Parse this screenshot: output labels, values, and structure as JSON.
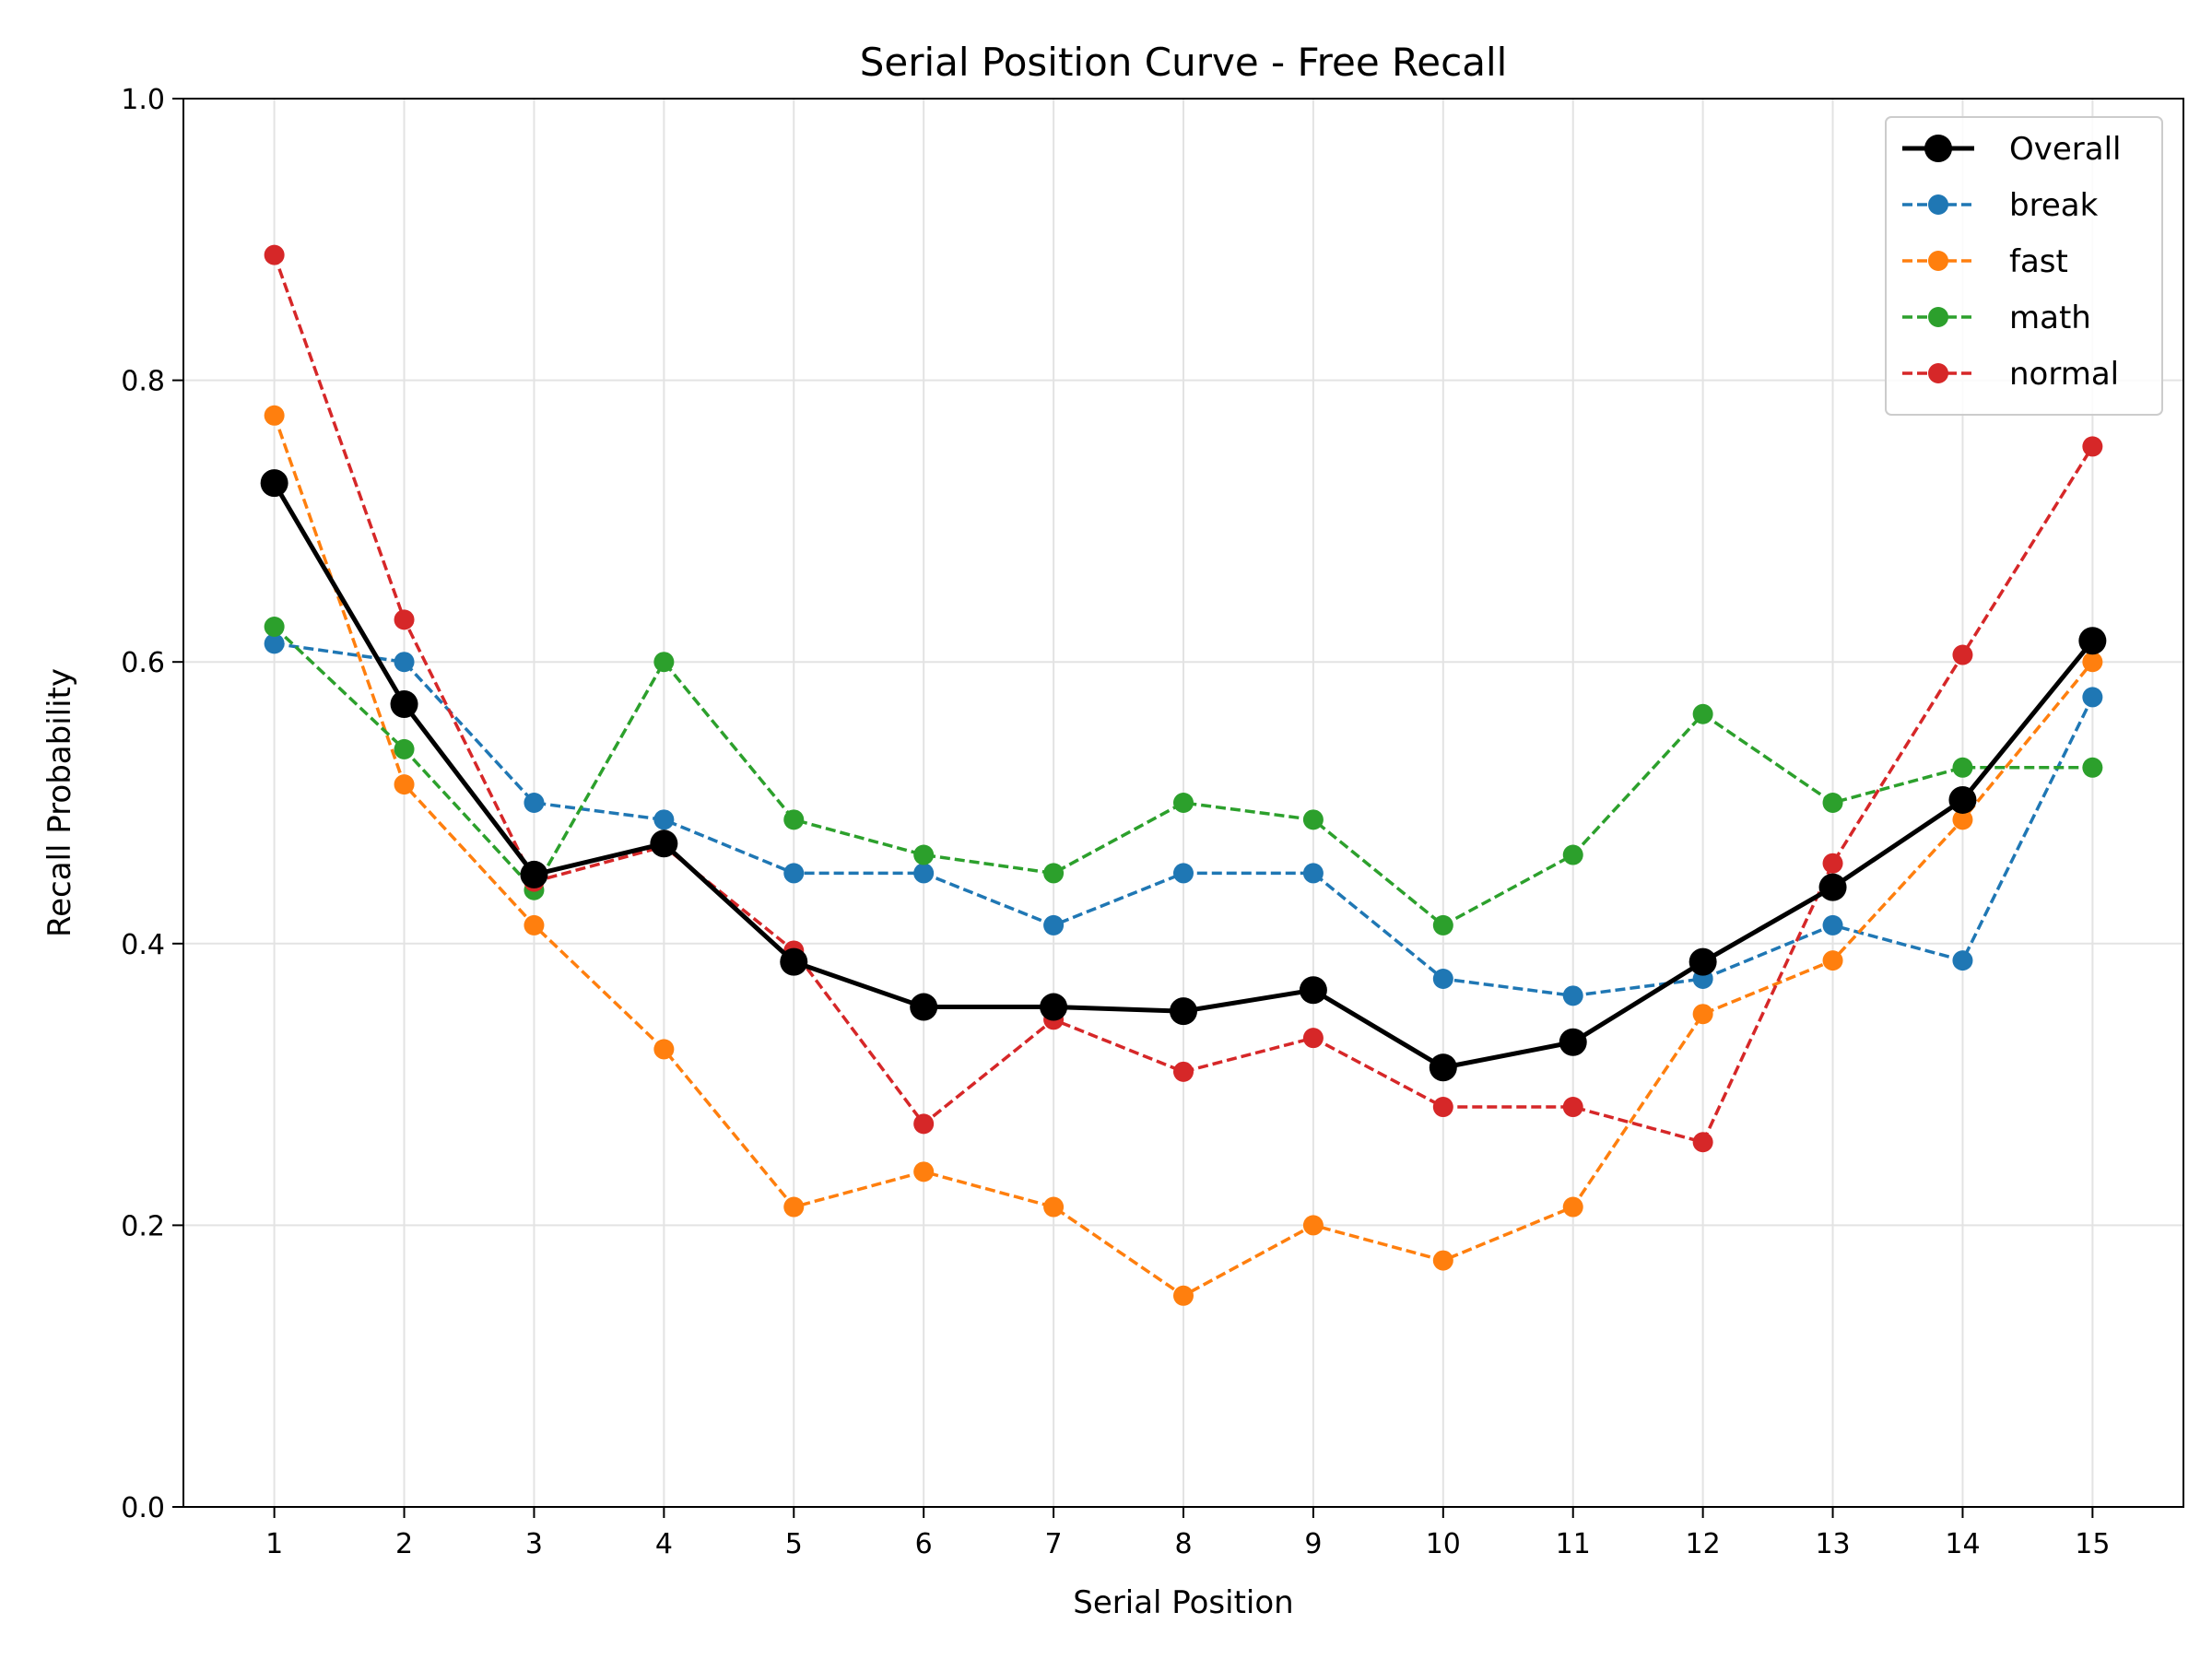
{
  "chart_data": {
    "type": "line",
    "title": "Serial Position Curve - Free Recall",
    "xlabel": "Serial Position",
    "ylabel": "Recall Probability",
    "x": [
      1,
      2,
      3,
      4,
      5,
      6,
      7,
      8,
      9,
      10,
      11,
      12,
      13,
      14,
      15
    ],
    "xlim": [
      0.3,
      15.7
    ],
    "ylim": [
      0.0,
      1.0
    ],
    "yticks": [
      "0.0",
      "0.2",
      "0.4",
      "0.6",
      "0.8",
      "1.0"
    ],
    "grid": true,
    "legend_position": "top-right",
    "series": [
      {
        "name": "break",
        "color": "#1f77b4",
        "style": "dashed",
        "values": [
          0.613,
          0.6,
          0.5,
          0.488,
          0.45,
          0.45,
          0.413,
          0.45,
          0.45,
          0.375,
          0.363,
          0.375,
          0.413,
          0.388,
          0.575
        ]
      },
      {
        "name": "fast",
        "color": "#ff7f0e",
        "style": "dashed",
        "values": [
          0.775,
          0.513,
          0.413,
          0.325,
          0.213,
          0.238,
          0.213,
          0.15,
          0.2,
          0.175,
          0.213,
          0.35,
          0.388,
          0.488,
          0.6
        ]
      },
      {
        "name": "math",
        "color": "#2ca02c",
        "style": "dashed",
        "values": [
          0.625,
          0.538,
          0.438,
          0.6,
          0.488,
          0.463,
          0.45,
          0.5,
          0.488,
          0.413,
          0.463,
          0.563,
          0.5,
          0.525,
          0.525
        ]
      },
      {
        "name": "normal",
        "color": "#d62728",
        "style": "dashed",
        "values": [
          0.889,
          0.63,
          0.444,
          0.469,
          0.395,
          0.272,
          0.346,
          0.309,
          0.333,
          0.284,
          0.284,
          0.259,
          0.457,
          0.605,
          0.753
        ]
      },
      {
        "name": "Overall",
        "color": "#000000",
        "style": "solid",
        "values": [
          0.727,
          0.57,
          0.449,
          0.471,
          0.387,
          0.355,
          0.355,
          0.352,
          0.367,
          0.312,
          0.33,
          0.387,
          0.44,
          0.502,
          0.615
        ]
      }
    ],
    "legend_order": [
      "Overall",
      "break",
      "fast",
      "math",
      "normal"
    ]
  }
}
